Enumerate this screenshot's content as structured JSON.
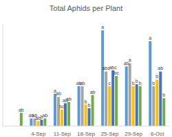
{
  "chart_data": {
    "type": "bar",
    "title": "Total Aphids per Plant",
    "categories": [
      null,
      "4-Sep",
      "11-Sep",
      "18-Sep",
      "25-Sep",
      "29-Sep",
      "6-Oct"
    ],
    "ylim": [
      0,
      160
    ],
    "yticks": [],
    "grid": false,
    "tick_labels": "x",
    "series": [
      {
        "color": "#5b9bd5",
        "values": [
          null,
          12,
          51,
          63,
          151,
          94,
          134
        ],
        "letters": [
          null,
          "ab",
          "a",
          "ab",
          "a",
          "ab",
          "a"
        ]
      },
      {
        "color": "#a5a5a5",
        "values": [
          null,
          12,
          46,
          63,
          86,
          99,
          63
        ],
        "letters": [
          null,
          "ab",
          "ab",
          "ab",
          "abc",
          "a",
          "b"
        ]
      },
      {
        "color": "#ffc000",
        "values": [
          null,
          8,
          26,
          34,
          63,
          63,
          73
        ],
        "letters": [
          null,
          "ab",
          "bc",
          "b",
          "c",
          "b",
          "b"
        ]
      },
      {
        "color": "#4472c4",
        "values": [
          null,
          10,
          36,
          28,
          88,
          66,
          86
        ],
        "letters": [
          null,
          "b",
          "ab",
          "b",
          "abc",
          "b",
          "ab"
        ]
      },
      {
        "color": "#70ad47",
        "values": [
          21,
          12,
          38,
          49,
          79,
          63,
          44
        ],
        "letters": [
          "ab",
          "ab",
          "ab",
          "ab",
          "bc",
          "b",
          "b"
        ]
      }
    ]
  }
}
